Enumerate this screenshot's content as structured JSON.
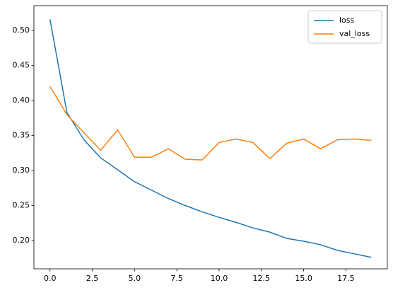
{
  "chart_data": {
    "type": "line",
    "x": [
      0,
      1,
      2,
      3,
      4,
      5,
      6,
      7,
      8,
      9,
      10,
      11,
      12,
      13,
      14,
      15,
      16,
      17,
      18,
      19
    ],
    "series": [
      {
        "name": "loss",
        "color": "#1f77b4",
        "values": [
          0.516,
          0.383,
          0.344,
          0.318,
          0.301,
          0.284,
          0.272,
          0.26,
          0.25,
          0.241,
          0.233,
          0.226,
          0.218,
          0.212,
          0.203,
          0.199,
          0.194,
          0.186,
          0.181,
          0.176
        ]
      },
      {
        "name": "val_loss",
        "color": "#ff7f0e",
        "values": [
          0.42,
          0.38,
          0.354,
          0.329,
          0.358,
          0.319,
          0.319,
          0.331,
          0.316,
          0.315,
          0.34,
          0.345,
          0.34,
          0.317,
          0.339,
          0.345,
          0.331,
          0.344,
          0.345,
          0.343
        ]
      }
    ],
    "xlim": [
      -0.95,
      19.95
    ],
    "ylim": [
      0.1596,
      0.5354
    ],
    "xticks": [
      {
        "value": 0,
        "label": "0.0"
      },
      2.5,
      {
        "value": 5,
        "label": "5.0"
      },
      7.5,
      {
        "value": 10,
        "label": "10.0"
      },
      12.5,
      {
        "value": 15,
        "label": "15.0"
      },
      17.5
    ],
    "yticks": [
      {
        "value": 0.2,
        "label": "0.20"
      },
      0.25,
      {
        "value": 0.3,
        "label": "0.30"
      },
      0.35,
      {
        "value": 0.4,
        "label": "0.40"
      },
      0.45,
      {
        "value": 0.5,
        "label": "0.50"
      }
    ],
    "grid": false,
    "legend": "upper-right"
  }
}
